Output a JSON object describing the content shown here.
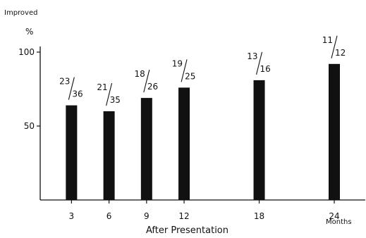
{
  "chart_data": {
    "type": "bar",
    "title": "",
    "ylabel_top": "Improved",
    "ylabel_unit": "%",
    "xlabel": "After  Presentation",
    "xunit": "Months",
    "ylim": [
      0,
      100
    ],
    "yticks": [
      "100",
      "50"
    ],
    "categories": [
      "3",
      "6",
      "9",
      "12",
      "18",
      "24"
    ],
    "values": [
      64,
      60,
      69,
      76,
      81,
      92
    ],
    "fractions": [
      {
        "num": "23",
        "den": "36"
      },
      {
        "num": "21",
        "den": "35"
      },
      {
        "num": "18",
        "den": "26"
      },
      {
        "num": "19",
        "den": "25"
      },
      {
        "num": "13",
        "den": "16"
      },
      {
        "num": "11",
        "den": "12"
      }
    ],
    "legend": "none",
    "grid": false,
    "bar_color": "#111111"
  }
}
